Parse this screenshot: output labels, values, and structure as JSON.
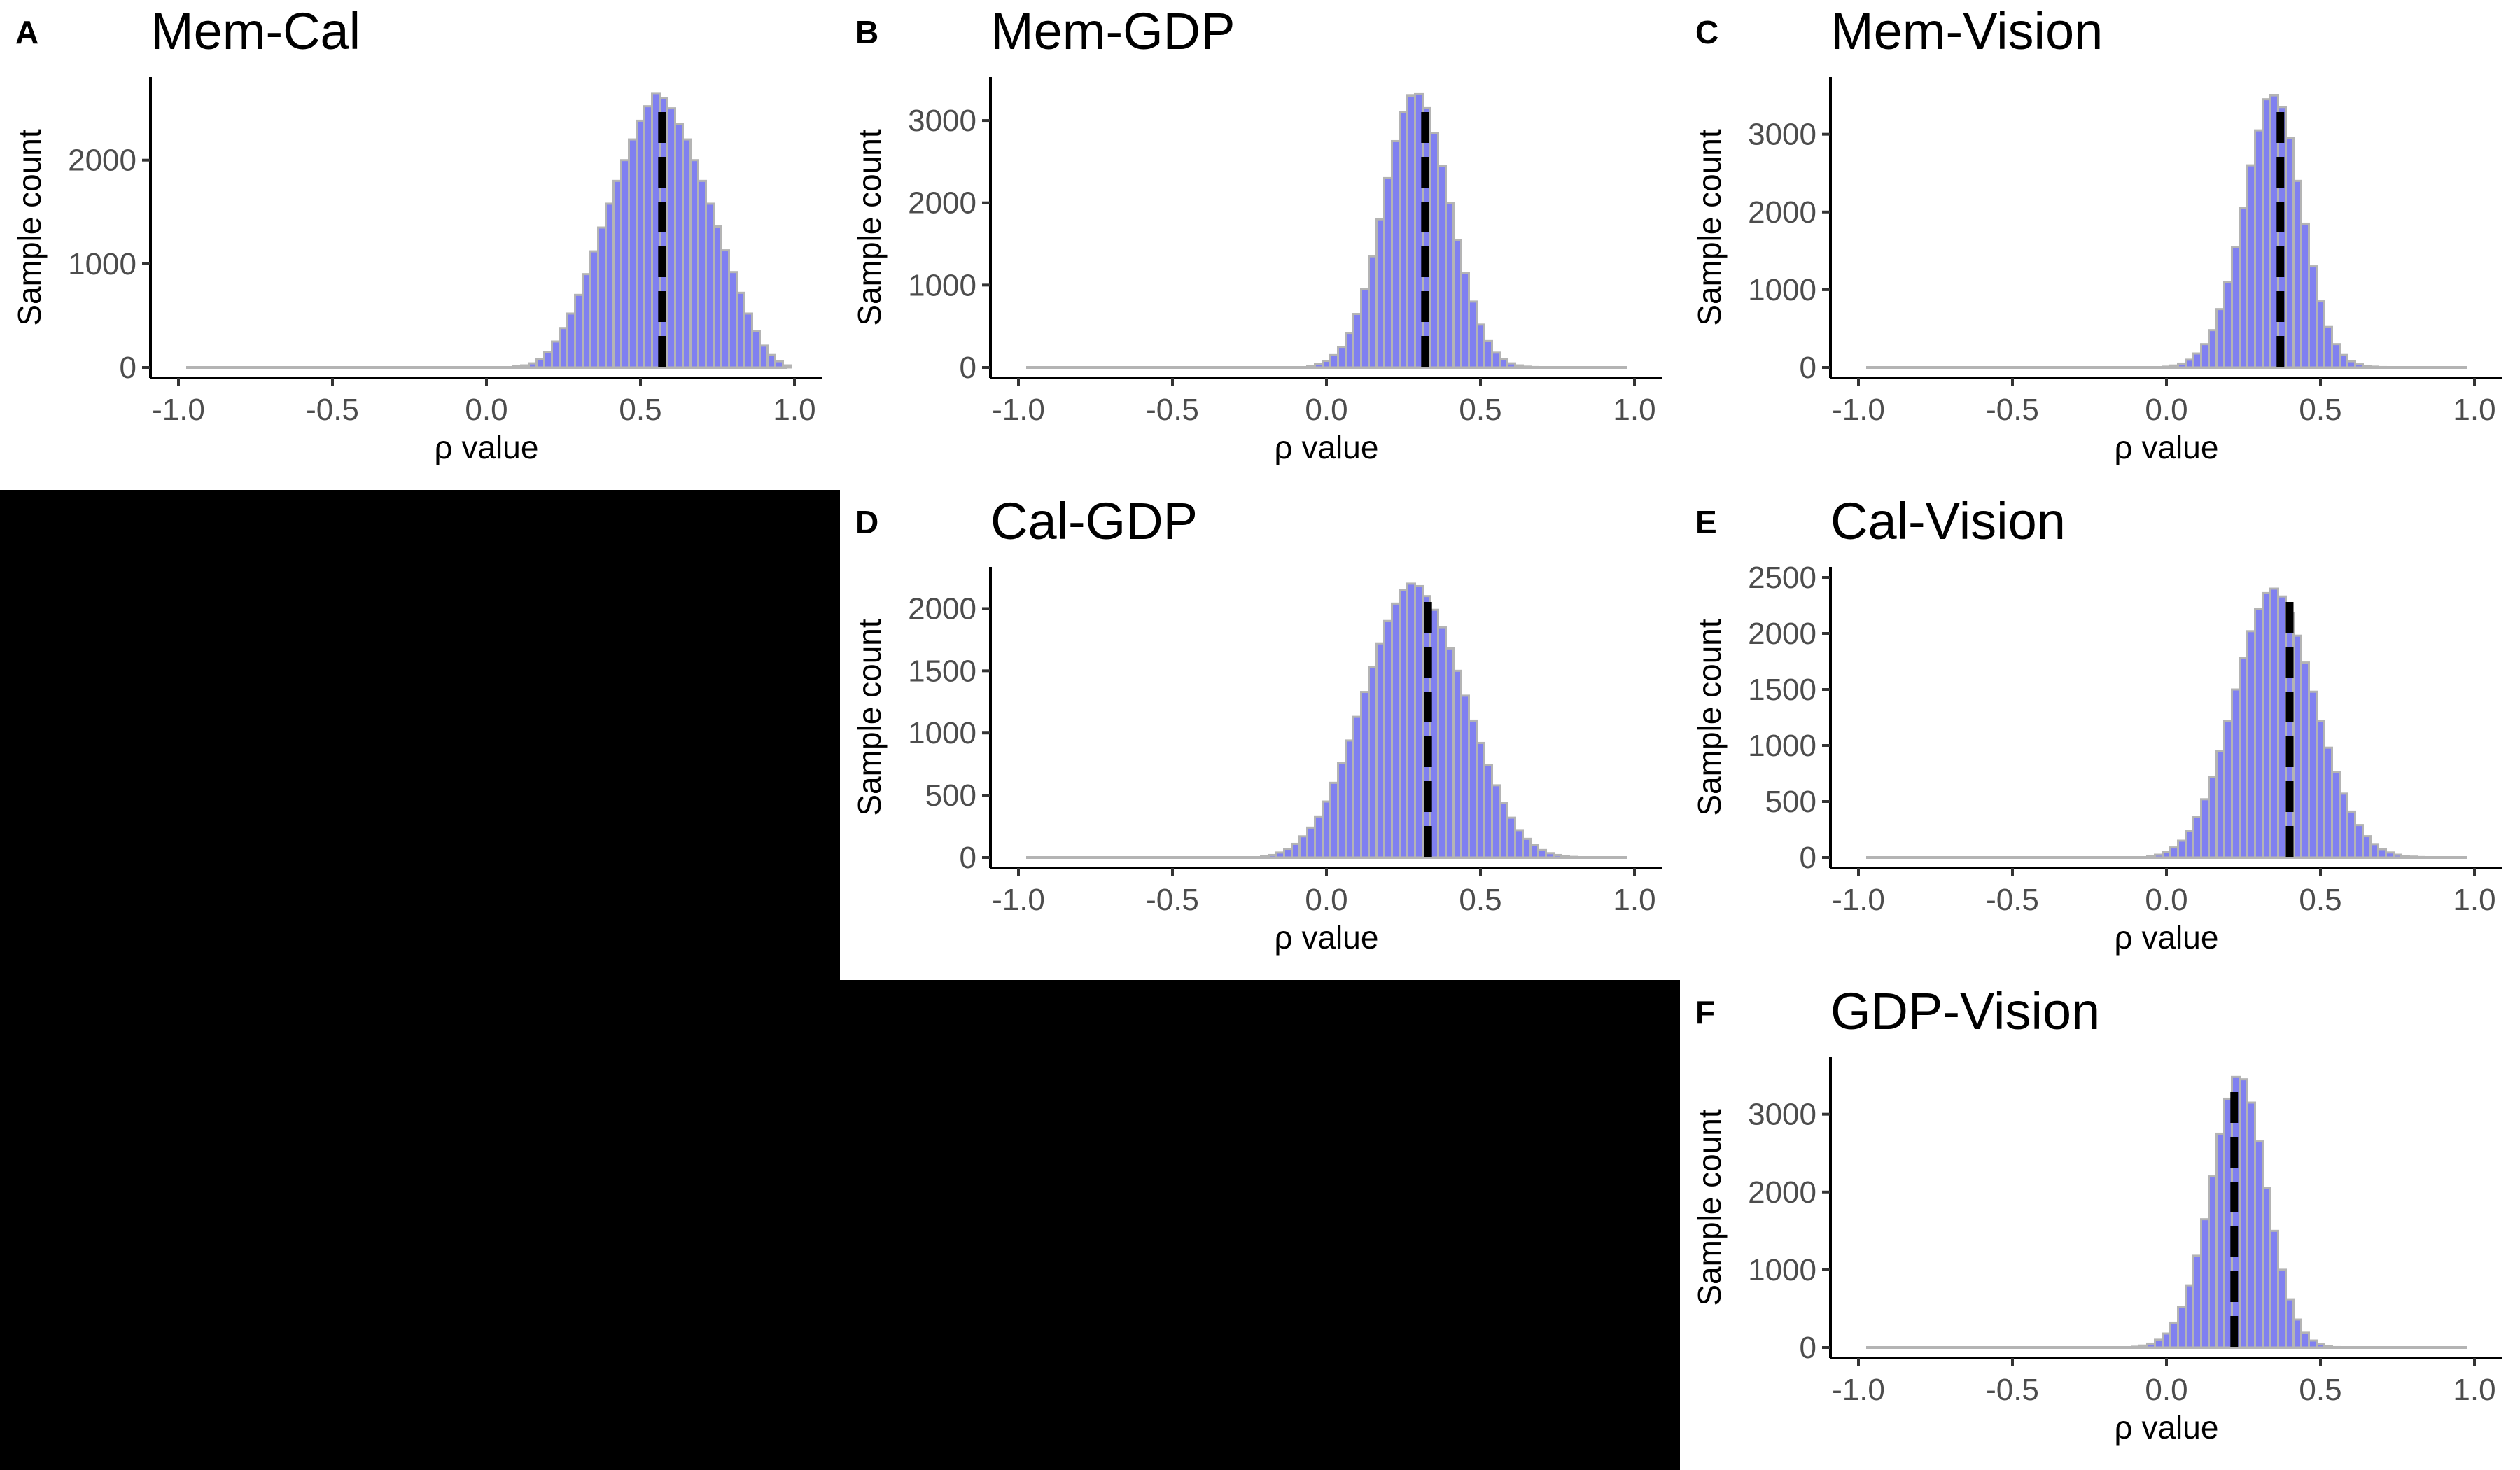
{
  "figure": {
    "y_axis_label": "Sample count",
    "x_axis_label": "ρ value",
    "colors": {
      "bar_fill": "#8080F0",
      "bar_edge": "#B4B4B4",
      "marker_line": "#000000",
      "background": "#FFFFFF",
      "blank_region": "#000000"
    }
  },
  "chart_data": [
    {
      "panel": "A",
      "title": "Mem-Cal",
      "type": "bar",
      "xlabel": "ρ value",
      "ylabel": "Sample count",
      "xlim": [
        -1.0,
        1.0
      ],
      "ylim": [
        0,
        2700
      ],
      "x_ticks": [
        "-1.0",
        "-0.5",
        "0.0",
        "0.5",
        "1.0"
      ],
      "y_ticks": [
        "0",
        "1000",
        "2000"
      ],
      "grid": false,
      "bin_width": 0.025,
      "x": [
        0.1,
        0.125,
        0.15,
        0.175,
        0.2,
        0.225,
        0.25,
        0.275,
        0.3,
        0.325,
        0.35,
        0.375,
        0.4,
        0.425,
        0.45,
        0.475,
        0.5,
        0.525,
        0.55,
        0.575,
        0.6,
        0.625,
        0.65,
        0.675,
        0.7,
        0.725,
        0.75,
        0.775,
        0.8,
        0.825,
        0.85,
        0.875,
        0.9,
        0.925,
        0.95,
        0.975
      ],
      "values": [
        10,
        20,
        40,
        80,
        150,
        250,
        380,
        520,
        700,
        900,
        1120,
        1350,
        1580,
        1800,
        2000,
        2200,
        2380,
        2520,
        2640,
        2600,
        2500,
        2350,
        2200,
        2000,
        1800,
        1580,
        1360,
        1130,
        920,
        720,
        520,
        350,
        210,
        120,
        60,
        20
      ],
      "marker_x": 0.57
    },
    {
      "panel": "B",
      "title": "Mem-GDP",
      "type": "bar",
      "xlabel": "ρ value",
      "ylabel": "Sample count",
      "xlim": [
        -1.0,
        1.0
      ],
      "ylim": [
        0,
        3400
      ],
      "x_ticks": [
        "-1.0",
        "-0.5",
        "0.0",
        "0.5",
        "1.0"
      ],
      "y_ticks": [
        "0",
        "1000",
        "2000",
        "3000"
      ],
      "grid": false,
      "bin_width": 0.025,
      "x": [
        -0.05,
        -0.025,
        0.0,
        0.025,
        0.05,
        0.075,
        0.1,
        0.125,
        0.15,
        0.175,
        0.2,
        0.225,
        0.25,
        0.275,
        0.3,
        0.325,
        0.35,
        0.375,
        0.4,
        0.425,
        0.45,
        0.475,
        0.5,
        0.525,
        0.55,
        0.575,
        0.6,
        0.625,
        0.65,
        0.675
      ],
      "values": [
        20,
        40,
        80,
        150,
        250,
        420,
        650,
        950,
        1350,
        1800,
        2300,
        2750,
        3100,
        3300,
        3320,
        3150,
        2850,
        2450,
        2000,
        1550,
        1150,
        800,
        520,
        320,
        180,
        100,
        50,
        25,
        10,
        5
      ],
      "marker_x": 0.32
    },
    {
      "panel": "C",
      "title": "Mem-Vision",
      "type": "bar",
      "xlabel": "ρ value",
      "ylabel": "Sample count",
      "xlim": [
        -1.0,
        1.0
      ],
      "ylim": [
        0,
        3600
      ],
      "x_ticks": [
        "-1.0",
        "-0.5",
        "0.0",
        "0.5",
        "1.0"
      ],
      "y_ticks": [
        "0",
        "1000",
        "2000",
        "3000"
      ],
      "grid": false,
      "bin_width": 0.025,
      "x": [
        0.0,
        0.025,
        0.05,
        0.075,
        0.1,
        0.125,
        0.15,
        0.175,
        0.2,
        0.225,
        0.25,
        0.275,
        0.3,
        0.325,
        0.35,
        0.375,
        0.4,
        0.425,
        0.45,
        0.475,
        0.5,
        0.525,
        0.55,
        0.575,
        0.6,
        0.625,
        0.65,
        0.675,
        0.7
      ],
      "values": [
        10,
        25,
        50,
        100,
        180,
        300,
        480,
        750,
        1100,
        1550,
        2050,
        2600,
        3050,
        3450,
        3500,
        3350,
        2950,
        2400,
        1850,
        1300,
        850,
        520,
        300,
        160,
        80,
        40,
        20,
        10,
        5
      ],
      "marker_x": 0.37
    },
    {
      "panel": "D",
      "title": "Cal-GDP",
      "type": "bar",
      "xlabel": "ρ value",
      "ylabel": "Sample count",
      "xlim": [
        -1.0,
        1.0
      ],
      "ylim": [
        0,
        2250
      ],
      "x_ticks": [
        "-1.0",
        "-0.5",
        "0.0",
        "0.5",
        "1.0"
      ],
      "y_ticks": [
        "0",
        "500",
        "1000",
        "1500",
        "2000"
      ],
      "grid": false,
      "bin_width": 0.025,
      "x": [
        -0.2,
        -0.175,
        -0.15,
        -0.125,
        -0.1,
        -0.075,
        -0.05,
        -0.025,
        0.0,
        0.025,
        0.05,
        0.075,
        0.1,
        0.125,
        0.15,
        0.175,
        0.2,
        0.225,
        0.25,
        0.275,
        0.3,
        0.325,
        0.35,
        0.375,
        0.4,
        0.425,
        0.45,
        0.475,
        0.5,
        0.525,
        0.55,
        0.575,
        0.6,
        0.625,
        0.65,
        0.675,
        0.7,
        0.725,
        0.75,
        0.775,
        0.8
      ],
      "values": [
        10,
        20,
        40,
        70,
        110,
        170,
        240,
        330,
        450,
        600,
        760,
        940,
        1130,
        1330,
        1530,
        1720,
        1900,
        2040,
        2150,
        2200,
        2180,
        2100,
        1990,
        1850,
        1680,
        1500,
        1300,
        1100,
        920,
        740,
        580,
        440,
        320,
        220,
        150,
        100,
        60,
        35,
        20,
        10,
        5
      ],
      "marker_x": 0.33
    },
    {
      "panel": "E",
      "title": "Cal-Vision",
      "type": "bar",
      "xlabel": "ρ value",
      "ylabel": "Sample count",
      "xlim": [
        -1.0,
        1.0
      ],
      "ylim": [
        0,
        2500
      ],
      "x_ticks": [
        "-1.0",
        "-0.5",
        "0.0",
        "0.5",
        "1.0"
      ],
      "y_ticks": [
        "0",
        "500",
        "1000",
        "1500",
        "2000",
        "2500"
      ],
      "grid": false,
      "bin_width": 0.025,
      "x": [
        -0.05,
        -0.025,
        0.0,
        0.025,
        0.05,
        0.075,
        0.1,
        0.125,
        0.15,
        0.175,
        0.2,
        0.225,
        0.25,
        0.275,
        0.3,
        0.325,
        0.35,
        0.375,
        0.4,
        0.425,
        0.45,
        0.475,
        0.5,
        0.525,
        0.55,
        0.575,
        0.6,
        0.625,
        0.65,
        0.675,
        0.7,
        0.725,
        0.75,
        0.775,
        0.8,
        0.825
      ],
      "values": [
        10,
        25,
        50,
        90,
        150,
        240,
        360,
        520,
        720,
        950,
        1220,
        1500,
        1780,
        2020,
        2220,
        2360,
        2400,
        2330,
        2180,
        1980,
        1740,
        1480,
        1220,
        980,
        760,
        570,
        410,
        290,
        190,
        120,
        75,
        45,
        25,
        15,
        8,
        4
      ],
      "marker_x": 0.4
    },
    {
      "panel": "F",
      "title": "GDP-Vision",
      "type": "bar",
      "xlabel": "ρ value",
      "ylabel": "Sample count",
      "xlim": [
        -1.0,
        1.0
      ],
      "ylim": [
        0,
        3600
      ],
      "x_ticks": [
        "-1.0",
        "-0.5",
        "0.0",
        "0.5",
        "1.0"
      ],
      "y_ticks": [
        "0",
        "1000",
        "2000",
        "3000"
      ],
      "grid": false,
      "bin_width": 0.025,
      "x": [
        -0.1,
        -0.075,
        -0.05,
        -0.025,
        0.0,
        0.025,
        0.05,
        0.075,
        0.1,
        0.125,
        0.15,
        0.175,
        0.2,
        0.225,
        0.25,
        0.275,
        0.3,
        0.325,
        0.35,
        0.375,
        0.4,
        0.425,
        0.45,
        0.475,
        0.5,
        0.525,
        0.55
      ],
      "values": [
        10,
        25,
        50,
        100,
        180,
        320,
        520,
        800,
        1180,
        1650,
        2200,
        2750,
        3200,
        3480,
        3450,
        3150,
        2650,
        2050,
        1500,
        1000,
        620,
        360,
        190,
        90,
        40,
        15,
        5
      ],
      "marker_x": 0.22
    }
  ]
}
